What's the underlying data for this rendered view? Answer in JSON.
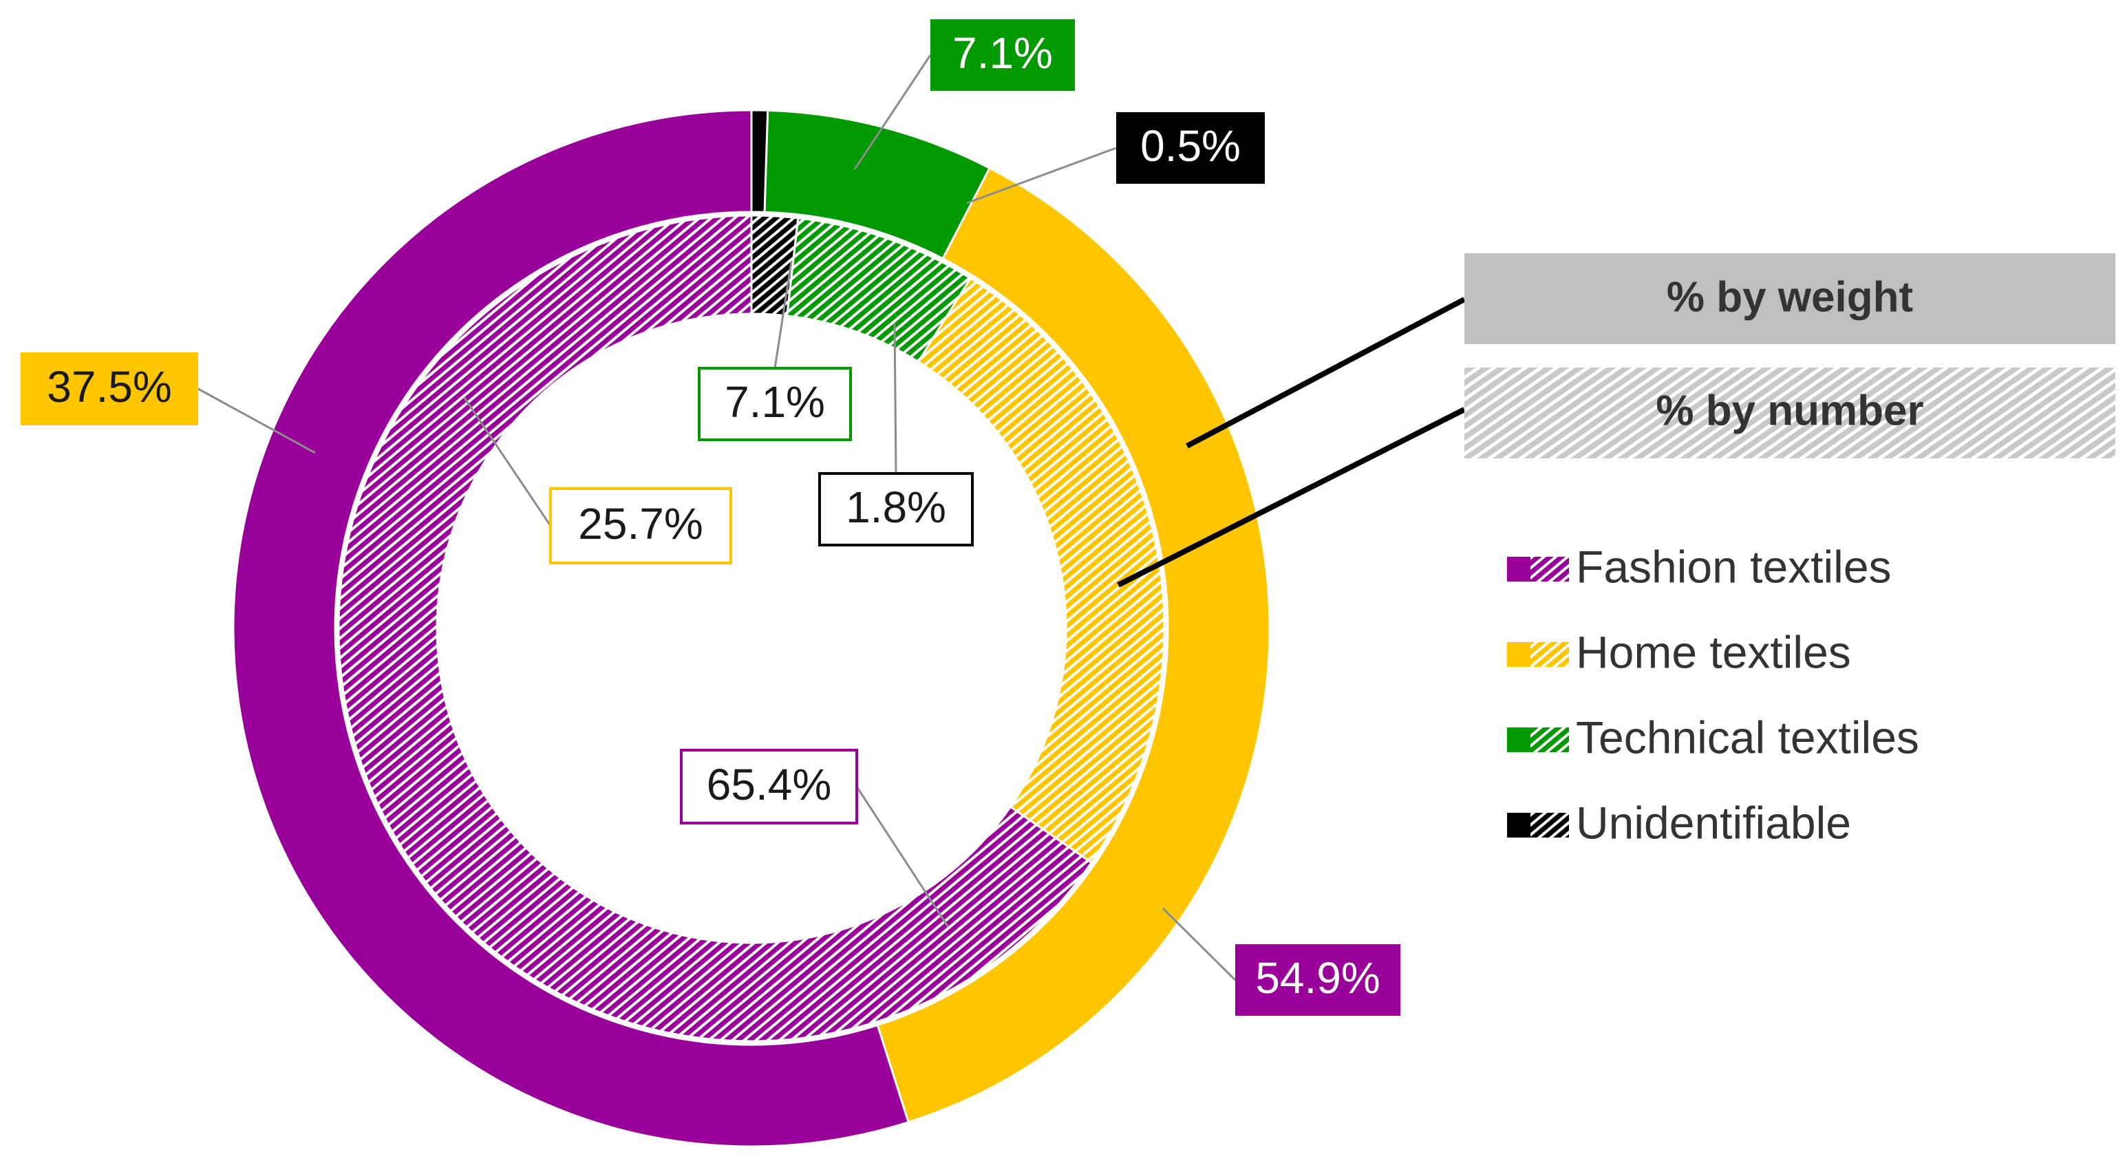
{
  "chart_data": {
    "type": "pie",
    "variant": "doughnut",
    "categories": [
      "Fashion textiles",
      "Home textiles",
      "Technical textiles",
      "Unidentifiable"
    ],
    "colors": [
      "#990099",
      "#FFC600",
      "#009900",
      "#000000"
    ],
    "series": [
      {
        "name": "% by weight",
        "ring": "outer",
        "fill": "solid",
        "values": [
          54.9,
          37.5,
          7.1,
          0.5
        ],
        "labels": [
          "54.9%",
          "37.5%",
          "7.1%",
          "0.5%"
        ]
      },
      {
        "name": "% by number",
        "ring": "inner",
        "fill": "hatched",
        "values": [
          65.4,
          25.7,
          7.1,
          1.8
        ],
        "labels": [
          "65.4%",
          "25.7%",
          "7.1%",
          "1.8%"
        ]
      }
    ],
    "legend_position": "right",
    "legend": [
      "Fashion textiles",
      "Home textiles",
      "Technical textiles",
      "Unidentifiable"
    ]
  }
}
